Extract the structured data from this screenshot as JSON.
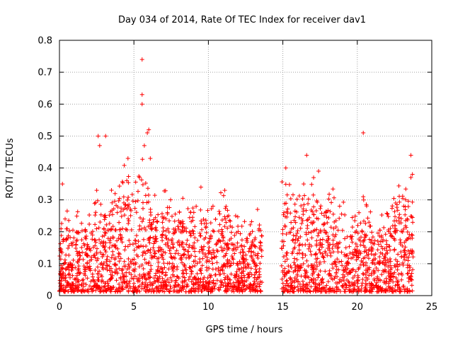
{
  "chart_data": {
    "type": "scatter",
    "title": "Day 034 of 2014, Rate Of TEC Index for receiver dav1",
    "xlabel": "GPS time / hours",
    "ylabel": "ROTI / TECUs",
    "xlim": [
      0,
      25
    ],
    "ylim": [
      0,
      0.8
    ],
    "x_ticks": [
      0,
      5,
      10,
      15,
      20,
      25
    ],
    "y_ticks": [
      0,
      0.1,
      0.2,
      0.3,
      0.4,
      0.5,
      0.6,
      0.7,
      0.8
    ],
    "x_tick_labels": [
      "0",
      "5",
      "10",
      "15",
      "20",
      "25"
    ],
    "y_tick_labels": [
      "0",
      "0.1",
      "0.2",
      "0.3",
      "0.4",
      "0.5",
      "0.6",
      "0.7",
      "0.8"
    ],
    "grid": true,
    "marker": "+",
    "series_color": "#ff0000",
    "data_gap_hours": [
      13.6,
      14.9
    ],
    "envelope": {
      "description_hours": [
        0,
        0.5,
        1,
        1.5,
        2,
        2.5,
        3,
        3.5,
        4,
        4.5,
        5,
        5.5,
        6,
        6.5,
        7,
        7.5,
        8,
        8.5,
        9,
        9.5,
        10,
        10.5,
        11,
        11.5,
        12,
        12.5,
        13,
        13.5,
        15,
        15.5,
        16,
        16.5,
        17,
        17.5,
        18,
        18.5,
        19,
        19.5,
        20,
        20.5,
        21,
        21.5,
        22,
        22.5,
        23,
        23.5,
        23.8
      ],
      "typical_upper_roti": [
        0.25,
        0.24,
        0.2,
        0.24,
        0.26,
        0.3,
        0.3,
        0.3,
        0.3,
        0.35,
        0.32,
        0.35,
        0.3,
        0.25,
        0.28,
        0.25,
        0.25,
        0.25,
        0.25,
        0.27,
        0.25,
        0.23,
        0.28,
        0.22,
        0.2,
        0.2,
        0.2,
        0.2,
        0.33,
        0.3,
        0.27,
        0.3,
        0.3,
        0.3,
        0.3,
        0.28,
        0.25,
        0.22,
        0.2,
        0.25,
        0.2,
        0.2,
        0.22,
        0.25,
        0.3,
        0.3,
        0.3
      ]
    },
    "notable_points": [
      {
        "x": 0.2,
        "y": 0.35
      },
      {
        "x": 2.6,
        "y": 0.5
      },
      {
        "x": 3.1,
        "y": 0.5
      },
      {
        "x": 2.7,
        "y": 0.47
      },
      {
        "x": 4.6,
        "y": 0.43
      },
      {
        "x": 5.55,
        "y": 0.74
      },
      {
        "x": 5.55,
        "y": 0.63
      },
      {
        "x": 5.55,
        "y": 0.6
      },
      {
        "x": 6.0,
        "y": 0.52
      },
      {
        "x": 5.9,
        "y": 0.51
      },
      {
        "x": 5.7,
        "y": 0.47
      },
      {
        "x": 6.1,
        "y": 0.43
      },
      {
        "x": 15.2,
        "y": 0.4
      },
      {
        "x": 16.6,
        "y": 0.44
      },
      {
        "x": 17.4,
        "y": 0.39
      },
      {
        "x": 16.4,
        "y": 0.35
      },
      {
        "x": 20.4,
        "y": 0.51
      },
      {
        "x": 20.4,
        "y": 0.31
      },
      {
        "x": 23.6,
        "y": 0.44
      },
      {
        "x": 23.7,
        "y": 0.38
      },
      {
        "x": 23.6,
        "y": 0.37
      },
      {
        "x": 11.1,
        "y": 0.33
      },
      {
        "x": 9.5,
        "y": 0.34
      },
      {
        "x": 13.3,
        "y": 0.27
      }
    ]
  }
}
